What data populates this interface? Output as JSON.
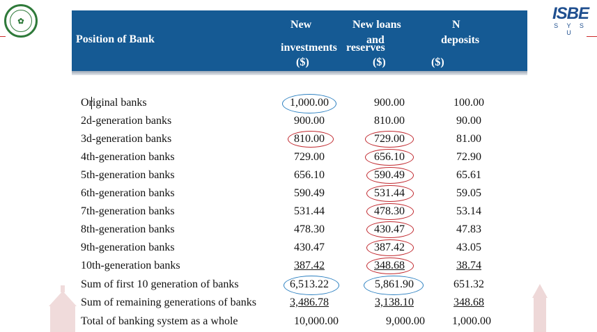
{
  "header": {
    "col0": "Position of Bank",
    "col1_line1": "New",
    "col1_line2": "investments",
    "col1_unit": "($)",
    "col2_line1": "New loans",
    "col2_line2": "and",
    "col2_line3": "reserves",
    "col2_unit": "($)",
    "col3_line1": "N",
    "col3_line2": "deposits",
    "col3_unit": "($)"
  },
  "logo_right": {
    "big": "ISBE",
    "small": "S Y S U"
  },
  "rows": [
    {
      "label": "Original banks",
      "c1": "1,000.00",
      "c2": "900.00",
      "c3": "100.00"
    },
    {
      "label": "2d-generation banks",
      "c1": "900.00",
      "c2": "810.00",
      "c3": "90.00"
    },
    {
      "label": "3d-generation banks",
      "c1": "810.00",
      "c2": "729.00",
      "c3": "81.00"
    },
    {
      "label": "4th-generation banks",
      "c1": "729.00",
      "c2": "656.10",
      "c3": "72.90"
    },
    {
      "label": "5th-generation banks",
      "c1": "656.10",
      "c2": "590.49",
      "c3": "65.61"
    },
    {
      "label": "6th-generation banks",
      "c1": "590.49",
      "c2": "531.44",
      "c3": "59.05"
    },
    {
      "label": "7th-generation banks",
      "c1": "531.44",
      "c2": "478.30",
      "c3": "53.14"
    },
    {
      "label": "8th-generation banks",
      "c1": "478.30",
      "c2": "430.47",
      "c3": "47.83"
    },
    {
      "label": "9th-generation banks",
      "c1": "430.47",
      "c2": "387.42",
      "c3": "43.05"
    },
    {
      "label": "10th-generation banks",
      "c1": "387.42",
      "c2": "348.68",
      "c3": "38.74"
    },
    {
      "label": "Sum of first 10 generation of banks",
      "c1": "6,513.22",
      "c2": "5,861.90",
      "c3": "651.32"
    },
    {
      "label": "Sum of remaining generations of banks",
      "c1": "3,486.78",
      "c2": "3,138.10",
      "c3": "348.68"
    },
    {
      "label": "Total of banking system as a whole",
      "c1": "10,000.00",
      "c2": "9,000.00",
      "c3": "1,000.00"
    }
  ],
  "colors": {
    "header_bg": "#155a94",
    "ring_blue": "#2a7fc0",
    "ring_red": "#c0272d"
  }
}
